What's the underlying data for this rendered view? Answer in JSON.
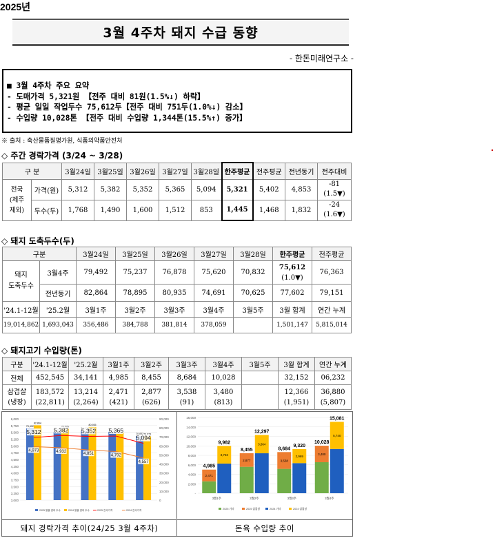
{
  "year": "2025년",
  "title": "3월 4주차 돼지 수급 동향",
  "org": "- 한돈미래연구소 -",
  "summary": {
    "heading": "■ 3월 4주차 주요 요약",
    "lines": [
      " - 도매가격 5,321원 【전주 대비 81원(1.5%↓) 하락】",
      " - 평균 일일 작업두수 75,612두【전주 대비 751두(1.0%↓) 감소】",
      " - 수입량 10,028톤 【전주 대비 수입량 1,344톤(15.5%↑) 증가】"
    ]
  },
  "source": "※ 출처 : 축산물품질평가원, 식품의약품안전처",
  "sec1": {
    "title": "◇ 주간 경락가격 (3/24 ~ 3/28)",
    "header": [
      "구 분",
      "3월24일",
      "3월25일",
      "3월26일",
      "3월27일",
      "3월28일",
      "한주평균",
      "전주평균",
      "전년동기",
      "전주대비"
    ],
    "rowlabel": [
      "전국",
      "(제주",
      "제외)"
    ],
    "price_label": "가격(원)",
    "head_label": "두수(두)",
    "price": [
      "5,312",
      "5,382",
      "5,352",
      "5,365",
      "5,094",
      "5,321",
      "5,402",
      "4,853"
    ],
    "price_diff": [
      "-81",
      "(1.5▼)"
    ],
    "heads": [
      "1,768",
      "1,490",
      "1,600",
      "1,512",
      "853",
      "1,445",
      "1,468",
      "1,832"
    ],
    "heads_diff": [
      "-24",
      "(1.6▼)"
    ]
  },
  "sec2": {
    "title": "◇ 돼지 도축두수(두)",
    "header": [
      "구분",
      "3월24일",
      "3월25일",
      "3월26일",
      "3월27일",
      "3월28일",
      "한주평균",
      "전주평균"
    ],
    "rowlabel": [
      "돼지",
      "도축두수"
    ],
    "r1label": "3월4주",
    "r1": [
      "79,492",
      "75,237",
      "76,878",
      "75,620",
      "70,832"
    ],
    "r1avg": [
      "75,612",
      "(1.0▼)"
    ],
    "r1prev": "76,363",
    "r2label": "전년동기",
    "r2": [
      "82,864",
      "78,895",
      "80,935",
      "74,691",
      "70,625",
      "77,602",
      "79,151"
    ],
    "h2": [
      "'24.1-12월",
      "'25.2월",
      "3월1주",
      "3월2주",
      "3월3주",
      "3월4주",
      "3월5주",
      "3월 합계",
      "연간 누계"
    ],
    "r3": [
      "19,014,862",
      "1,693,043",
      "356,486",
      "384,788",
      "381,814",
      "378,059",
      "",
      "1,501,147",
      "5,815,014"
    ]
  },
  "sec3": {
    "title": "◇ 돼지고기 수입량(톤)",
    "header": [
      "구분",
      "'24.1-12월",
      "'25.2월",
      "3월1주",
      "3월2주",
      "3월3주",
      "3월4주",
      "3월5주",
      "3월 합계",
      "연간 누계"
    ],
    "r1label": "전체",
    "r1": [
      "452,545",
      "34,141",
      "4,985",
      "8,455",
      "8,684",
      "10,028",
      "",
      "32,152",
      "06,232"
    ],
    "r2label": [
      "삼겹살",
      "(냉장)"
    ],
    "r2a": [
      "183,572",
      "13,214",
      "2,471",
      "2,877",
      "3,538",
      "3,480",
      "",
      "12,366",
      "36,880"
    ],
    "r2b": [
      "(22,811)",
      "(2,264)",
      "(421)",
      "(626)",
      "(91)",
      "(813)",
      "",
      "(1,951)",
      "(5,807)"
    ]
  },
  "chart_data": [
    {
      "type": "bar",
      "caption": "돼지 경락가격 추이(24/25 3월 4주차)",
      "categories": [
        "",
        "",
        "",
        "",
        ""
      ],
      "series": [
        {
          "name": "2025 일별 경락 가격",
          "values": [
            5312,
            5382,
            5352,
            5365,
            5094
          ]
        },
        {
          "name": "2024 일별 경락 가격",
          "values": [
            4973,
            4932,
            4851,
            4792,
            4557
          ]
        }
      ],
      "bars_right_axis": [
        79492,
        82864,
        75237,
        78895,
        76878,
        80935,
        75620,
        74691,
        70832,
        70625
      ],
      "bar_top_labels": [
        "79,492",
        "82,864",
        "75,237",
        "78,895",
        "76,878",
        "80,935",
        "75,620",
        "74,691",
        "70,832",
        "70,625"
      ],
      "ylim": [
        3000,
        6000
      ],
      "ylim_right": [
        0,
        90000
      ],
      "yticks": [
        "3,000",
        "3,250",
        "3,500",
        "3,750",
        "4,000",
        "4,250",
        "4,500",
        "4,750",
        "5,000",
        "5,250",
        "5,500",
        "5,750",
        "6,000"
      ],
      "yticks_right": [
        "0",
        "10,000",
        "20,000",
        "30,000",
        "40,000",
        "50,000",
        "60,000",
        "70,000",
        "80,000",
        "90,000"
      ],
      "legend": [
        "2025 일별 경락 두수",
        "2024 일별 경락 두수",
        "2025 전국가격",
        "2024 전국가격"
      ],
      "colors": {
        "bar2025": "#4472c4",
        "bar2024": "#ffc000",
        "line2025": "#ff0000",
        "line2024": "#ed7d31"
      }
    },
    {
      "type": "bar",
      "caption": "돈육 수입량 추이",
      "categories": [
        "3월1주",
        "3월2주",
        "3월3주",
        "3월4주"
      ],
      "series": [
        {
          "name": "2025 기타",
          "values": [
            2514,
            5578,
            5146,
            6548
          ]
        },
        {
          "name": "2025 삼겹살",
          "values": [
            2471,
            2877,
            3538,
            3480
          ]
        },
        {
          "name": "2024 기타",
          "values": [
            6259,
            8433,
            6351,
            9341
          ]
        },
        {
          "name": "2024 삼겹살",
          "values": [
            3723,
            3864,
            2969,
            5740
          ]
        }
      ],
      "totals_2025": [
        "4,985",
        "8,455",
        "8,684",
        "10,028"
      ],
      "totals_2024": [
        "9,982",
        "12,297",
        "9,320",
        "15,081"
      ],
      "inner_labels_2025": [
        "2,471",
        "2,877",
        "3,538",
        "3,480"
      ],
      "inner_labels_2024": [
        "3,723",
        "3,864",
        "2,969",
        "5,740"
      ],
      "ylim": [
        0,
        16000
      ],
      "yticks": [
        "-",
        "2,000",
        "4,000",
        "6,000",
        "8,000",
        "10,000",
        "12,000",
        "14,000",
        "16,000"
      ],
      "legend": [
        "2025 기타",
        "2025 삼겹살",
        "2024 기타",
        "2024 삼겹살"
      ],
      "colors": {
        "o25": "#70ad47",
        "s25": "#ed7d31",
        "o24": "#1f5fbf",
        "s24": "#ffc000"
      }
    }
  ]
}
